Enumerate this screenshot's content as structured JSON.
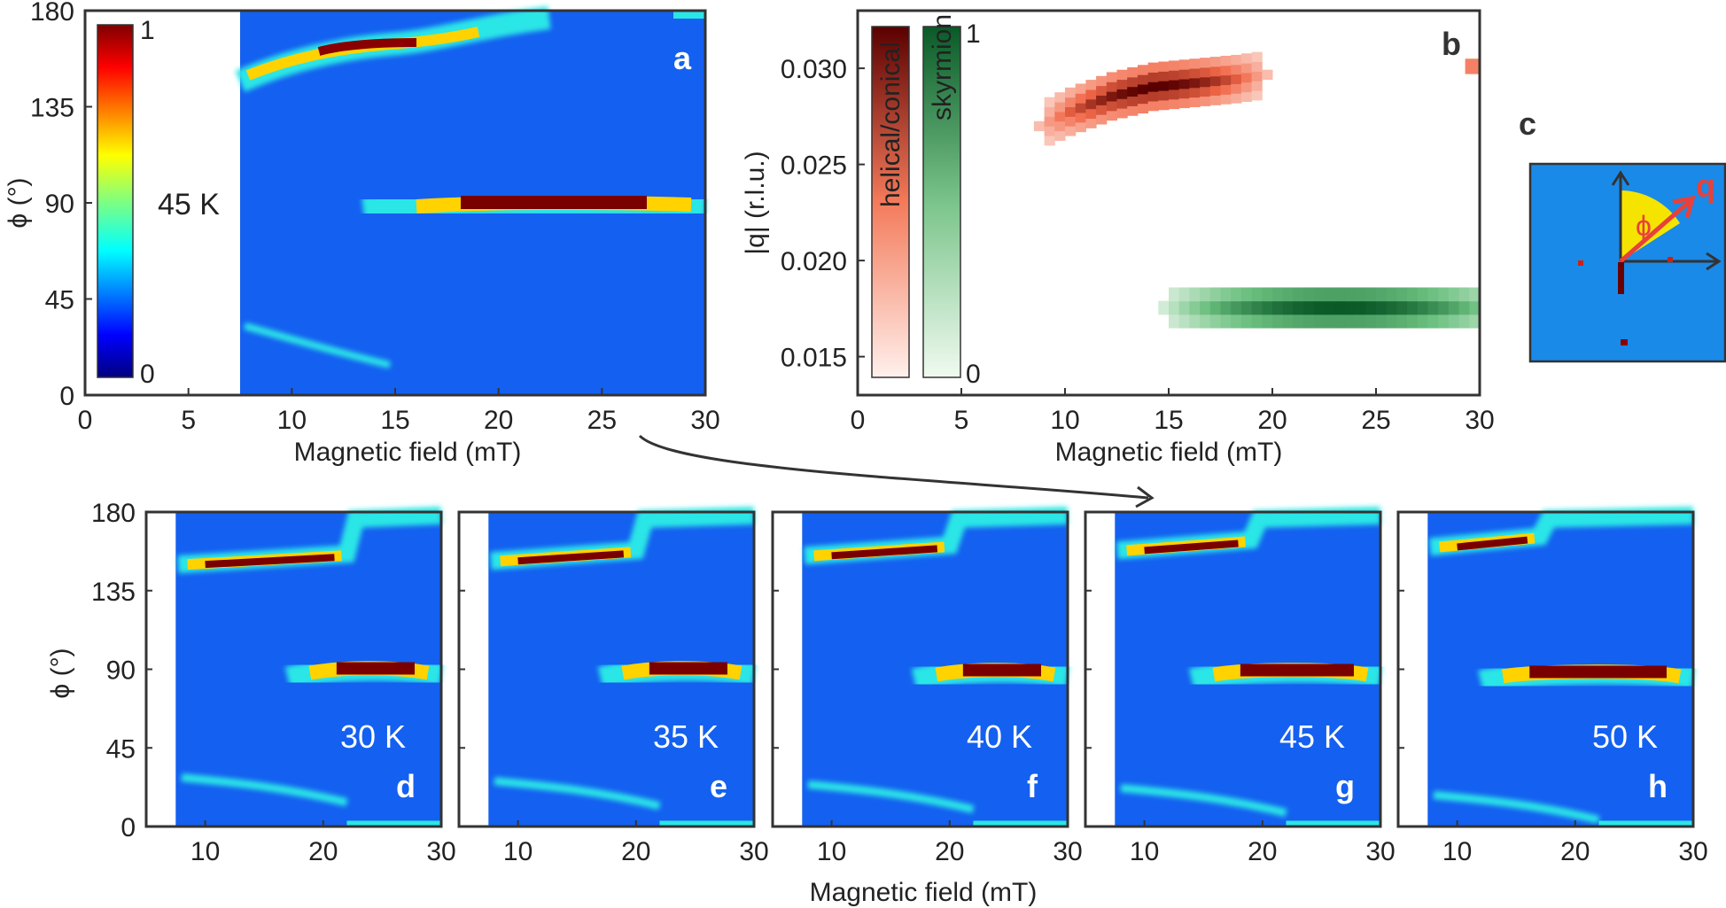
{
  "colors": {
    "map_background": "#1460f0",
    "plot_frame": "#333333",
    "helical_max": "#5a0000",
    "helical_min": "#fff0ec",
    "skyrmion_max": "#0a5a28",
    "skyrmion_min": "#f0faf0",
    "arrow_q": "#e8403a",
    "phi_wedge": "#f5e400"
  },
  "panels": {
    "a": {
      "label": "a",
      "temperature": "45 K",
      "colorbar_max": "1",
      "colorbar_min": "0",
      "xlabel": "Magnetic field (mT)",
      "ylabel": "ϕ (°)",
      "xlim": [
        0,
        30
      ],
      "ylim": [
        0,
        180
      ],
      "xticks": [
        "0",
        "5",
        "10",
        "15",
        "20",
        "25",
        "30"
      ],
      "yticks": [
        "0",
        "45",
        "90",
        "135",
        "180"
      ]
    },
    "b": {
      "label": "b",
      "xlabel": "Magnetic field (mT)",
      "ylabel": "|q|  (r.l.u.)",
      "xlim": [
        0,
        30
      ],
      "ylim": [
        0.013,
        0.033
      ],
      "xticks": [
        "0",
        "5",
        "10",
        "15",
        "20",
        "25",
        "30"
      ],
      "yticks": [
        "0.015",
        "0.020",
        "0.025",
        "0.030"
      ],
      "legend_helical": "helical/conical",
      "legend_skyrmion": "skyrmion",
      "legend_max": "1",
      "legend_min": "0"
    },
    "c": {
      "label": "c",
      "q_label": "q",
      "phi_label": "ϕ"
    },
    "row": {
      "xlabel": "Magnetic field (mT)",
      "ylabel": "ϕ (°)",
      "xticks": [
        "10",
        "20",
        "30"
      ],
      "yticks": [
        "0",
        "45",
        "90",
        "135",
        "180"
      ],
      "panels": [
        {
          "label": "d",
          "temperature": "30 K"
        },
        {
          "label": "e",
          "temperature": "35 K"
        },
        {
          "label": "f",
          "temperature": "40 K"
        },
        {
          "label": "g",
          "temperature": "45 K"
        },
        {
          "label": "h",
          "temperature": "50 K"
        }
      ]
    }
  },
  "chart_data": [
    {
      "type": "heatmap",
      "panel": "a",
      "title": "45 K",
      "xlabel": "Magnetic field (mT)",
      "ylabel": "ϕ (°)",
      "xlim": [
        0,
        30
      ],
      "ylim": [
        0,
        180
      ],
      "no_data_below_field": 7.5,
      "features": [
        {
          "name": "upper branch",
          "field": [
            7.5,
            12,
            16,
            19
          ],
          "phi": [
            148,
            155,
            162,
            167
          ],
          "peak": 1.0
        },
        {
          "name": "middle branch",
          "field": [
            12,
            18,
            28,
            30
          ],
          "phi": [
            86,
            89,
            89,
            88
          ],
          "peak": 1.0
        },
        {
          "name": "lower branch",
          "field": [
            7.5,
            12,
            16
          ],
          "phi": [
            30,
            22,
            14
          ],
          "peak": 0.4
        }
      ]
    },
    {
      "type": "heatmap",
      "panel": "b",
      "xlabel": "Magnetic field (mT)",
      "ylabel": "|q| (r.l.u.)",
      "xlim": [
        0,
        30
      ],
      "ylim": [
        0.013,
        0.033
      ],
      "series": [
        {
          "name": "helical/conical",
          "field": [
            8,
            10,
            12,
            14,
            16,
            18,
            20
          ],
          "q": [
            0.0265,
            0.0275,
            0.0283,
            0.0288,
            0.029,
            0.0292,
            0.0295
          ],
          "peak_field": 14
        },
        {
          "name": "skyrmion",
          "field": [
            14,
            18,
            22,
            26,
            30
          ],
          "q": [
            0.017,
            0.0172,
            0.0172,
            0.0172,
            0.0172
          ],
          "peak_field": 23
        }
      ]
    },
    {
      "type": "heatmap",
      "panel": "d-h",
      "xlabel": "Magnetic field (mT)",
      "ylabel": "ϕ (°)",
      "xlim": [
        5,
        30
      ],
      "ylim": [
        0,
        180
      ],
      "series": [
        {
          "name": "30 K",
          "upper_phi": 150,
          "upper_end_field": 22,
          "middle_start_field": 17,
          "middle_phi": 90,
          "lower_phi": 28
        },
        {
          "name": "35 K",
          "upper_phi": 152,
          "upper_end_field": 20,
          "middle_start_field": 17,
          "middle_phi": 90,
          "lower_phi": 26
        },
        {
          "name": "40 K",
          "upper_phi": 155,
          "upper_end_field": 20,
          "middle_start_field": 17,
          "middle_phi": 89,
          "lower_phi": 24
        },
        {
          "name": "45 K",
          "upper_phi": 158,
          "upper_end_field": 19,
          "middle_start_field": 14,
          "middle_phi": 89,
          "lower_phi": 22
        },
        {
          "name": "50 K",
          "upper_phi": 160,
          "upper_end_field": 17,
          "middle_start_field": 12,
          "middle_phi": 88,
          "lower_phi": 18
        }
      ]
    }
  ]
}
